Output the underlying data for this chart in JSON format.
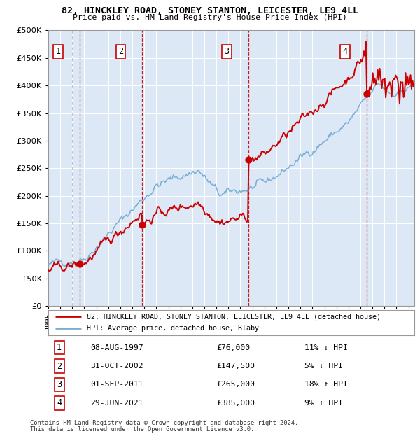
{
  "title1": "82, HINCKLEY ROAD, STONEY STANTON, LEICESTER, LE9 4LL",
  "title2": "Price paid vs. HM Land Registry's House Price Index (HPI)",
  "legend_line1": "82, HINCKLEY ROAD, STONEY STANTON, LEICESTER, LE9 4LL (detached house)",
  "legend_line2": "HPI: Average price, detached house, Blaby",
  "footer1": "Contains HM Land Registry data © Crown copyright and database right 2024.",
  "footer2": "This data is licensed under the Open Government Licence v3.0.",
  "sales": [
    {
      "num": 1,
      "date": "08-AUG-1997",
      "year": 1997.6,
      "price": 76000,
      "pct": "11%",
      "dir": "↓"
    },
    {
      "num": 2,
      "date": "31-OCT-2002",
      "year": 2002.83,
      "price": 147500,
      "pct": "5%",
      "dir": "↓"
    },
    {
      "num": 3,
      "date": "01-SEP-2011",
      "year": 2011.67,
      "price": 265000,
      "pct": "18%",
      "dir": "↑"
    },
    {
      "num": 4,
      "date": "29-JUN-2021",
      "year": 2021.5,
      "price": 385000,
      "pct": "9%",
      "dir": "↑"
    }
  ],
  "hpi_color": "#7aadd4",
  "price_color": "#cc0000",
  "dot_color": "#cc0000",
  "bg_color": "#dce8f5",
  "grid_color": "#ffffff",
  "vline_sale_color": "#cc0000",
  "vline_gray_color": "#aaaaaa",
  "ylim": [
    0,
    500000
  ],
  "yticks": [
    0,
    50000,
    100000,
    150000,
    200000,
    250000,
    300000,
    350000,
    400000,
    450000,
    500000
  ],
  "xmin": 1995,
  "xmax": 2025.5
}
